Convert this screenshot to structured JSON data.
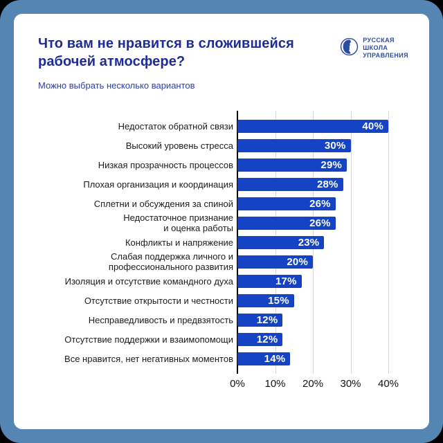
{
  "header": {
    "title": "Что вам не нравится в сложившейся\nрабочей атмосфере?",
    "subtitle": "Можно выбрать несколько вариантов"
  },
  "logo": {
    "name": "РУССКАЯ\nШКОЛА\nУПРАВЛЕНИЯ",
    "icon": "face-in-circle-icon"
  },
  "colors": {
    "frame": "#5585b2",
    "bar": "#1443c5",
    "title": "#1c2b96",
    "subtitle": "#2a3fae",
    "logo": "#2c4d9f",
    "gridline": "#d7d7d7",
    "value_label": "#ffffff"
  },
  "chart_data": {
    "type": "bar",
    "orientation": "horizontal",
    "title": "Что вам не нравится в сложившейся рабочей атмосфере?",
    "subtitle": "Можно выбрать несколько вариантов",
    "categories": [
      "Недостаток обратной связи",
      "Высокий уровень стресса",
      "Низкая прозрачность процессов",
      "Плохая организация и координация",
      "Сплетни и обсуждения за спиной",
      "Недостаточное признание\nи оценка работы",
      "Конфликты и напряжение",
      "Слабая поддержка личного и\nпрофессионального развития",
      "Изоляция и отсутствие командного духа",
      "Отсутствие открытости и честности",
      "Несправедливость и предвзятость",
      "Отсутствие поддержки и взаимопомощи",
      "Все нравится, нет негативных моментов"
    ],
    "values": [
      40,
      30,
      29,
      28,
      26,
      26,
      23,
      20,
      17,
      15,
      12,
      12,
      14
    ],
    "value_suffix": "%",
    "x_ticks": [
      "0%",
      "10%",
      "20%",
      "30%",
      "40%"
    ],
    "xlim": [
      0,
      40
    ],
    "grid": true,
    "legend": "none"
  }
}
